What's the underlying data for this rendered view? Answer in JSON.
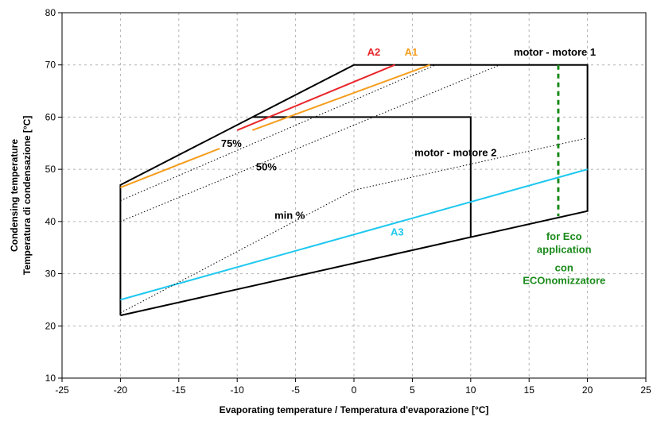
{
  "chart_data": {
    "type": "line",
    "title": "",
    "xlabel": "Evaporating temperature / Temperatura d'evaporazione [°C]",
    "ylabel": [
      "Condensing temperature",
      "Temperatura di condensazione [°C]"
    ],
    "xlim": [
      -25,
      25
    ],
    "ylim": [
      10,
      80
    ],
    "xticks": [
      -25,
      -20,
      -15,
      -10,
      -5,
      0,
      5,
      10,
      15,
      20,
      25
    ],
    "yticks": [
      10,
      20,
      30,
      40,
      50,
      60,
      70,
      80
    ],
    "grid": true,
    "series": [
      {
        "name": "motor - motore 1",
        "color": "#000000",
        "style": "solid",
        "width": 2,
        "points": [
          [
            -20,
            22
          ],
          [
            -20,
            47
          ],
          [
            0,
            70
          ],
          [
            20,
            70
          ],
          [
            20,
            42
          ],
          [
            -20,
            22
          ]
        ]
      },
      {
        "name": "motor - motore 2",
        "color": "#000000",
        "style": "solid",
        "width": 2,
        "points": [
          [
            -8.7,
            60
          ],
          [
            10,
            60
          ],
          [
            10,
            37
          ]
        ]
      },
      {
        "name": "A2",
        "color": "#e8262b",
        "style": "solid",
        "width": 2,
        "points": [
          [
            -10,
            57.5
          ],
          [
            3.5,
            70
          ]
        ]
      },
      {
        "name": "A1",
        "color": "#f59d1e",
        "style": "solid",
        "width": 2,
        "points": [
          [
            -20,
            46.5
          ],
          [
            -11.5,
            54
          ]
        ]
      },
      {
        "name": "A1",
        "color": "#f59d1e",
        "style": "solid",
        "width": 2,
        "points": [
          [
            -8.7,
            57.5
          ],
          [
            6.5,
            70
          ]
        ]
      },
      {
        "name": "A3",
        "color": "#1ec8ef",
        "style": "solid",
        "width": 2,
        "points": [
          [
            -20,
            25
          ],
          [
            20,
            50
          ]
        ]
      },
      {
        "name": "75%",
        "color": "#000000",
        "style": "dotted",
        "width": 1,
        "points": [
          [
            -20,
            44
          ],
          [
            7,
            70
          ]
        ]
      },
      {
        "name": "50%",
        "color": "#000000",
        "style": "dotted",
        "width": 1,
        "points": [
          [
            -20,
            40
          ],
          [
            12.5,
            70
          ]
        ]
      },
      {
        "name": "min %",
        "color": "#000000",
        "style": "dotted",
        "width": 1,
        "points": [
          [
            -20,
            22.5
          ],
          [
            0,
            46
          ],
          [
            20,
            56
          ]
        ]
      },
      {
        "name": "for Eco application con ECOnomizzatore",
        "color": "#1a8a1a",
        "style": "dashed",
        "width": 3,
        "points": [
          [
            17.5,
            70
          ],
          [
            17.5,
            41
          ]
        ]
      }
    ],
    "annotations": [
      {
        "text": "A2",
        "x": 1.7,
        "y": 71.8,
        "color": "#e8262b"
      },
      {
        "text": "A1",
        "x": 4.9,
        "y": 71.8,
        "color": "#f59d1e"
      },
      {
        "text": "motor - motore 1",
        "x": 17.2,
        "y": 71.8,
        "color": "#000000"
      },
      {
        "text": "motor - motore 2",
        "x": 8.7,
        "y": 52.5,
        "color": "#000000"
      },
      {
        "text": "75%",
        "x": -10.5,
        "y": 54.3,
        "color": "#000000"
      },
      {
        "text": "50%",
        "x": -7.5,
        "y": 49.8,
        "color": "#000000"
      },
      {
        "text": "min %",
        "x": -5.5,
        "y": 40.5,
        "color": "#000000"
      },
      {
        "text": "A3",
        "x": 3.7,
        "y": 37.3,
        "color": "#1ec8ef"
      },
      {
        "text": "for Eco",
        "x": 18,
        "y": 36.5,
        "color": "#1a8a1a"
      },
      {
        "text": "application",
        "x": 18,
        "y": 34,
        "color": "#1a8a1a"
      },
      {
        "text": "con",
        "x": 18,
        "y": 30.5,
        "color": "#1a8a1a"
      },
      {
        "text": "ECOnomizzatore",
        "x": 18,
        "y": 28,
        "color": "#1a8a1a"
      }
    ]
  }
}
